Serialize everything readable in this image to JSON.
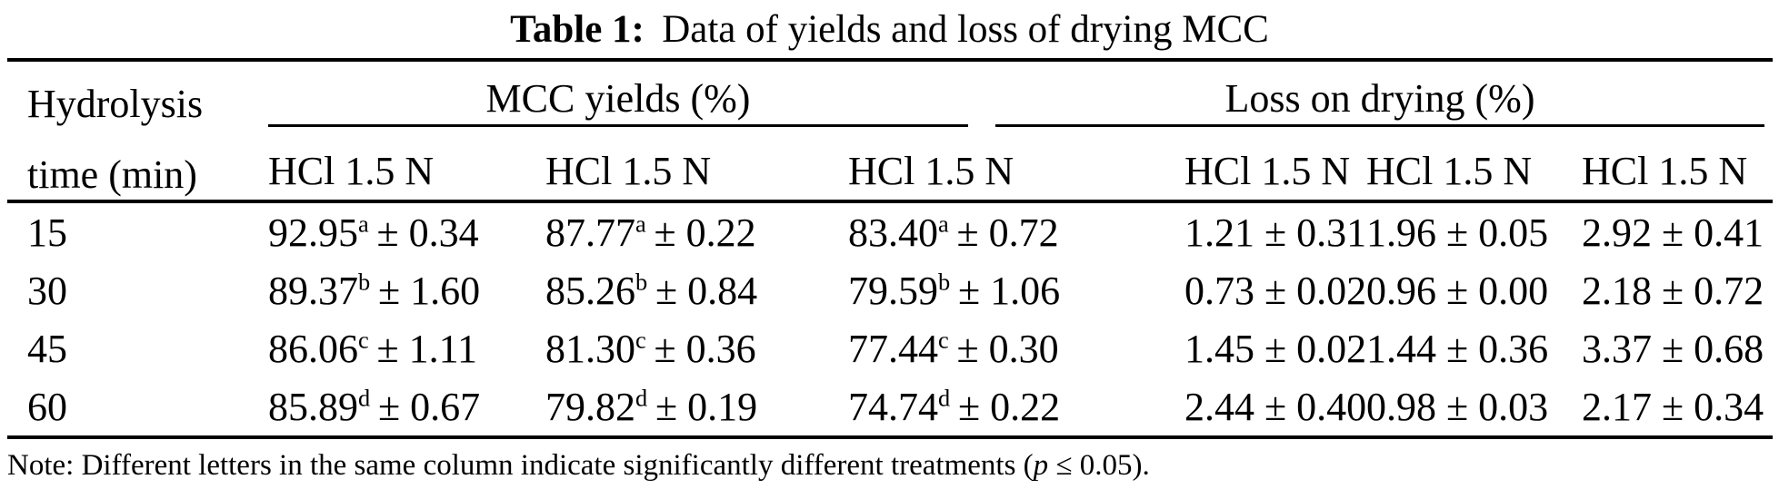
{
  "title": {
    "label": "Table 1:",
    "text": "Data of yields and loss of drying MCC"
  },
  "table": {
    "row_header": "Hydrolysis time (min)",
    "group1": "MCC yields (%)",
    "group2": "Loss on drying (%)",
    "subheaders": [
      "HCl 1.5 N",
      "HCl 1.5 N",
      "HCl 1.5 N",
      "HCl 1.5 N",
      "HCl 1.5 N",
      "HCl 1.5 N"
    ],
    "rows": [
      {
        "time": "15",
        "y": [
          {
            "v": "92.95",
            "s": "a",
            "pm": "± 0.34"
          },
          {
            "v": "87.77",
            "s": "a",
            "pm": "± 0.22"
          },
          {
            "v": "83.40",
            "s": "a",
            "pm": "± 0.72"
          }
        ],
        "l": [
          "1.21 ± 0.31",
          "1.96 ± 0.05",
          "2.92 ± 0.41"
        ]
      },
      {
        "time": "30",
        "y": [
          {
            "v": "89.37",
            "s": "b",
            "pm": "± 1.60"
          },
          {
            "v": "85.26",
            "s": "b",
            "pm": "± 0.84"
          },
          {
            "v": "79.59",
            "s": "b",
            "pm": "± 1.06"
          }
        ],
        "l": [
          "0.73 ± 0.02",
          "0.96 ± 0.00",
          "2.18 ± 0.72"
        ]
      },
      {
        "time": "45",
        "y": [
          {
            "v": "86.06",
            "s": "c",
            "pm": "± 1.11"
          },
          {
            "v": "81.30",
            "s": "c",
            "pm": "± 0.36"
          },
          {
            "v": "77.44",
            "s": "c",
            "pm": "± 0.30"
          }
        ],
        "l": [
          "1.45 ± 0.02",
          "1.44 ± 0.36",
          "3.37 ± 0.68"
        ]
      },
      {
        "time": "60",
        "y": [
          {
            "v": "85.89",
            "s": "d",
            "pm": "± 0.67"
          },
          {
            "v": "79.82",
            "s": "d",
            "pm": "± 0.19"
          },
          {
            "v": "74.74",
            "s": "d",
            "pm": "± 0.22"
          }
        ],
        "l": [
          "2.44 ± 0.40",
          "0.98 ± 0.03",
          "2.17 ± 0.34"
        ]
      }
    ]
  },
  "note": {
    "before": "Note: Different letters in the same column indicate significantly different treatments (",
    "p_symbol": "p",
    "after": " ≤ 0.05)."
  },
  "colors": {
    "text": "#000000",
    "background": "#ffffff",
    "rule": "#000000"
  }
}
